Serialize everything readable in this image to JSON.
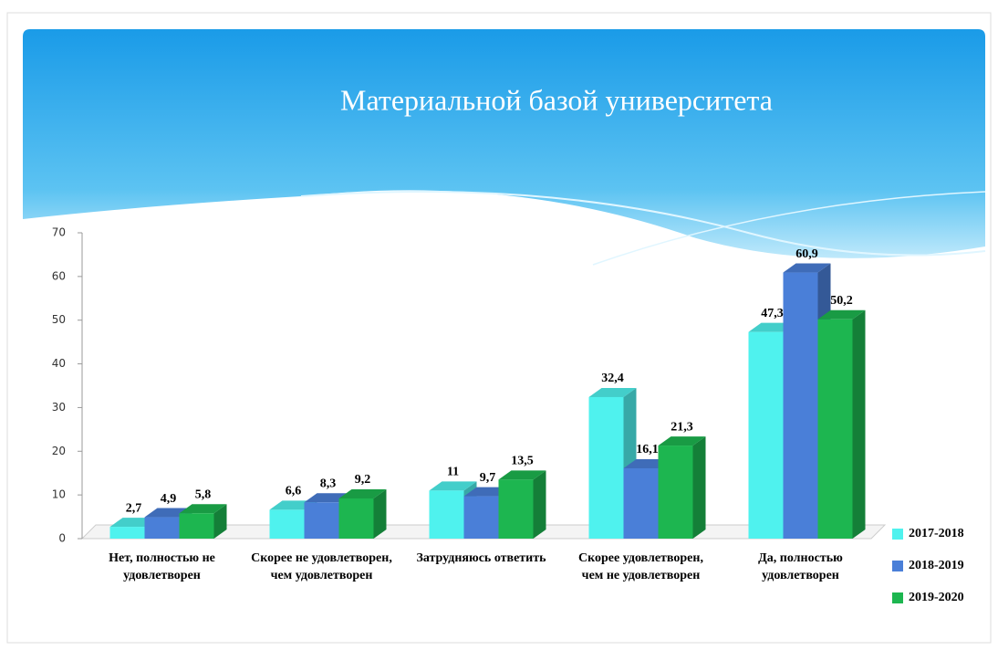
{
  "chart_data": {
    "type": "bar",
    "title": "Материальной базой университета",
    "categories": [
      "Нет, полностью не удовлетворен",
      "Скорее не удовлетворен, чем удовлетворен",
      "Затрудняюсь ответить",
      "Скорее удовлетворен, чем не удовлетворен",
      "Да, полностью удовлетворен"
    ],
    "series": [
      {
        "name": "2017-2018",
        "color": "#4ff2ee",
        "values": [
          2.7,
          6.6,
          11,
          32.4,
          47.3
        ],
        "value_labels": [
          "2,7",
          "6,6",
          "11",
          "32,4",
          "47,3"
        ]
      },
      {
        "name": "2018-2019",
        "color": "#4a7fd8",
        "values": [
          4.9,
          8.3,
          9.7,
          16.1,
          60.9
        ],
        "value_labels": [
          "4,9",
          "8,3",
          "9,7",
          "16,1",
          "60,9"
        ]
      },
      {
        "name": "2019-2020",
        "color": "#1db650",
        "values": [
          5.8,
          9.2,
          13.5,
          21.3,
          50.2
        ],
        "value_labels": [
          "5,8",
          "9,2",
          "13,5",
          "21,3",
          "50,2"
        ]
      }
    ],
    "ylim": [
      0,
      70
    ],
    "yticks": [
      0,
      10,
      20,
      30,
      40,
      50,
      60,
      70
    ],
    "grid": false,
    "legend": "right"
  }
}
